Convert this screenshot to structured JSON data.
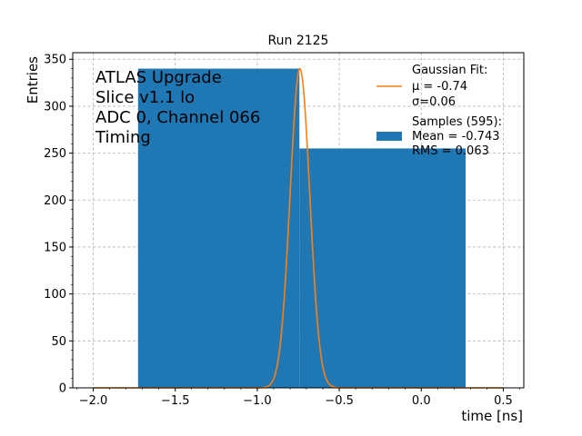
{
  "chart_data": {
    "type": "bar",
    "title": "Run 2125",
    "xlabel": "time [ns]",
    "ylabel": "Entries",
    "xlim": [
      -2.125,
      0.625
    ],
    "ylim": [
      0,
      357
    ],
    "xticks": [
      -2.0,
      -1.5,
      -1.0,
      -0.5,
      0.0,
      0.5
    ],
    "xtick_labels": [
      "−2.0",
      "−1.5",
      "−1.0",
      "−0.5",
      "0.0",
      "0.5"
    ],
    "yticks": [
      0,
      50,
      100,
      150,
      200,
      250,
      300,
      350
    ],
    "ytick_labels": [
      "0",
      "50",
      "100",
      "150",
      "200",
      "250",
      "300",
      "350"
    ],
    "grid": true,
    "histogram": {
      "name": "Samples (595):",
      "color": "#1f77b4",
      "bins": [
        {
          "x0": -1.727,
          "x1": -0.743,
          "value": 340
        },
        {
          "x0": -0.743,
          "x1": 0.27,
          "value": 255
        }
      ]
    },
    "gaussian_fit": {
      "name": "Gaussian Fit:",
      "color": "#ff7f0e",
      "mu": -0.74,
      "sigma": 0.06,
      "amplitude": 340,
      "x_range": [
        -2.0,
        0.5
      ]
    },
    "annotation_lines": [
      "ATLAS Upgrade",
      "Slice v1.1 lo",
      "ADC 0, Channel 066",
      "Timing"
    ],
    "legend": {
      "placement": "top-right",
      "fit_title": "Gaussian Fit:",
      "fit_mu": " μ = -0.74",
      "fit_sigma": " σ=0.06",
      "hist_title": "Samples (595):",
      "hist_mean": " Mean = -0.743",
      "hist_rms": " RMS = 0.063"
    }
  }
}
